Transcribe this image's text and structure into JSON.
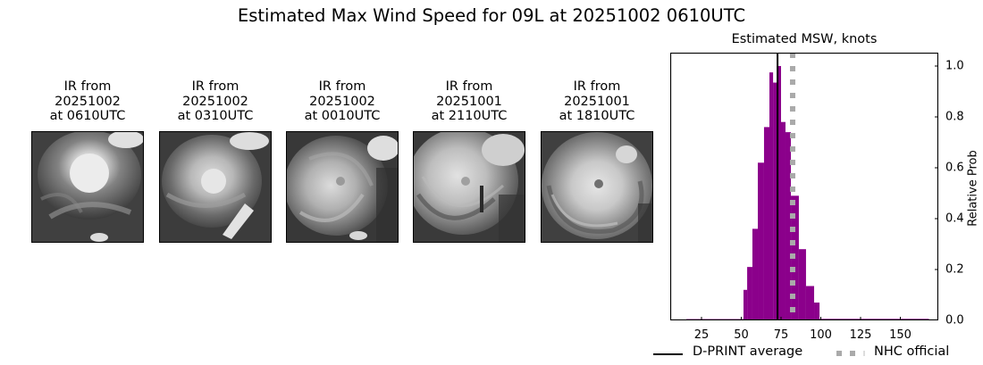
{
  "figure": {
    "title": "Estimated Max Wind Speed for 09L at 20251002 0610UTC"
  },
  "ir_panels": [
    {
      "label": "IR from\n20251002\nat 0610UTC",
      "date": "20251002",
      "time": "0610UTC"
    },
    {
      "label": "IR from\n20251002\nat 0310UTC",
      "date": "20251002",
      "time": "0310UTC"
    },
    {
      "label": "IR from\n20251002\nat 0010UTC",
      "date": "20251002",
      "time": "0010UTC"
    },
    {
      "label": "IR from\n20251001\nat 2110UTC",
      "date": "20251001",
      "time": "2110UTC"
    },
    {
      "label": "IR from\n20251001\nat 1810UTC",
      "date": "20251001",
      "time": "1810UTC"
    }
  ],
  "chart_data": {
    "type": "bar",
    "title": "Estimated MSW, knots",
    "xlabel": "",
    "ylabel": "Relative Prob",
    "xlim": [
      5,
      174
    ],
    "ylim": [
      0,
      1.05
    ],
    "xticks": [
      25,
      50,
      75,
      100,
      125,
      150
    ],
    "yticks": [
      0.0,
      0.2,
      0.4,
      0.6,
      0.8,
      1.0
    ],
    "ytick_labels": [
      "0.0",
      "0.2",
      "0.4",
      "0.6",
      "0.8",
      "1.0"
    ],
    "y_axis_side": "right",
    "grid": false,
    "bar_color": "#8b008b",
    "bins": [
      {
        "x0": 15.5,
        "x1": 51.4,
        "value": 0.005
      },
      {
        "x0": 51.4,
        "x1": 53.7,
        "value": 0.12
      },
      {
        "x0": 53.7,
        "x1": 57.0,
        "value": 0.21
      },
      {
        "x0": 57.0,
        "x1": 60.4,
        "value": 0.36
      },
      {
        "x0": 60.4,
        "x1": 64.3,
        "value": 0.62
      },
      {
        "x0": 64.3,
        "x1": 67.7,
        "value": 0.76
      },
      {
        "x0": 67.7,
        "x1": 70.0,
        "value": 0.975
      },
      {
        "x0": 70.0,
        "x1": 73.3,
        "value": 0.935
      },
      {
        "x0": 73.3,
        "x1": 75.0,
        "value": 1.0
      },
      {
        "x0": 75.0,
        "x1": 77.8,
        "value": 0.78
      },
      {
        "x0": 77.8,
        "x1": 81.2,
        "value": 0.74
      },
      {
        "x0": 81.2,
        "x1": 86.2,
        "value": 0.49
      },
      {
        "x0": 86.2,
        "x1": 90.7,
        "value": 0.28
      },
      {
        "x0": 90.7,
        "x1": 95.8,
        "value": 0.135
      },
      {
        "x0": 95.8,
        "x1": 99.2,
        "value": 0.07
      },
      {
        "x0": 99.2,
        "x1": 168.0,
        "value": 0.006
      }
    ],
    "lines": [
      {
        "name": "D-PRINT average",
        "x": 72.8,
        "style": "solid",
        "color": "#000000"
      },
      {
        "name": "NHC official",
        "x": 82.3,
        "style": "dotted",
        "color": "#aaaaaa"
      }
    ],
    "legend": {
      "position": "below",
      "entries": [
        "D-PRINT average",
        "NHC official"
      ]
    }
  }
}
